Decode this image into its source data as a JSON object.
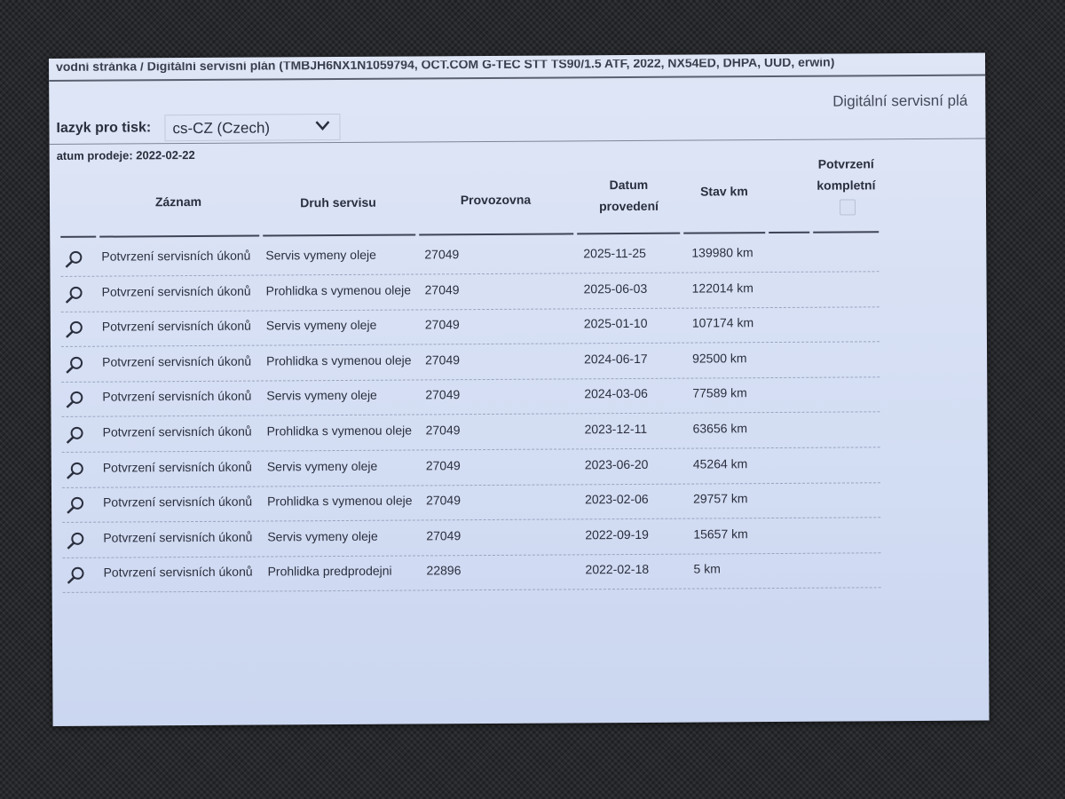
{
  "breadcrumb": "vodní stránka / Digitální servisní plán (TMBJH6NX1N1059794, OCT.COM G-TEC STT TS90/1.5 ATF, 2022, NX54ED, DHPA, UUD, erwin)",
  "page_title": "Digitální servisní plá",
  "language": {
    "label": "Iazyk pro tisk:",
    "selected": "cs-CZ (Czech)"
  },
  "sale_date": "atum prodeje: 2022-02-22",
  "table": {
    "headers": {
      "record": "Záznam",
      "service_type": "Druh servisu",
      "workshop": "Provozovna",
      "date_line1": "Datum",
      "date_line2": "provedení",
      "odometer": "Stav km",
      "confirm_line1": "Potvrzení",
      "confirm_line2": "kompletní"
    },
    "confirm_all_checked": false,
    "rows": [
      {
        "record": "Potvrzení servisních úkonů",
        "service_type": "Servis vymeny oleje",
        "workshop": "27049",
        "date": "2025-11-25",
        "odometer": "139980 km"
      },
      {
        "record": "Potvrzení servisních úkonů",
        "service_type": "Prohlidka s vymenou oleje",
        "workshop": "27049",
        "date": "2025-06-03",
        "odometer": "122014 km"
      },
      {
        "record": "Potvrzení servisních úkonů",
        "service_type": "Servis vymeny oleje",
        "workshop": "27049",
        "date": "2025-01-10",
        "odometer": "107174 km"
      },
      {
        "record": "Potvrzení servisních úkonů",
        "service_type": "Prohlidka s vymenou oleje",
        "workshop": "27049",
        "date": "2024-06-17",
        "odometer": "92500 km"
      },
      {
        "record": "Potvrzení servisních úkonů",
        "service_type": "Servis vymeny oleje",
        "workshop": "27049",
        "date": "2024-03-06",
        "odometer": "77589 km"
      },
      {
        "record": "Potvrzení servisních úkonů",
        "service_type": "Prohlidka s vymenou oleje",
        "workshop": "27049",
        "date": "2023-12-11",
        "odometer": "63656 km"
      },
      {
        "record": "Potvrzení servisních úkonů",
        "service_type": "Servis vymeny oleje",
        "workshop": "27049",
        "date": "2023-06-20",
        "odometer": "45264 km"
      },
      {
        "record": "Potvrzení servisních úkonů",
        "service_type": "Prohlidka s vymenou oleje",
        "workshop": "27049",
        "date": "2023-02-06",
        "odometer": "29757 km"
      },
      {
        "record": "Potvrzení servisních úkonů",
        "service_type": "Servis vymeny oleje",
        "workshop": "27049",
        "date": "2022-09-19",
        "odometer": "15657 km"
      },
      {
        "record": "Potvrzení servisních úkonů",
        "service_type": "Prohlidka predprodejni",
        "workshop": "22896",
        "date": "2022-02-18",
        "odometer": "5 km"
      }
    ]
  }
}
